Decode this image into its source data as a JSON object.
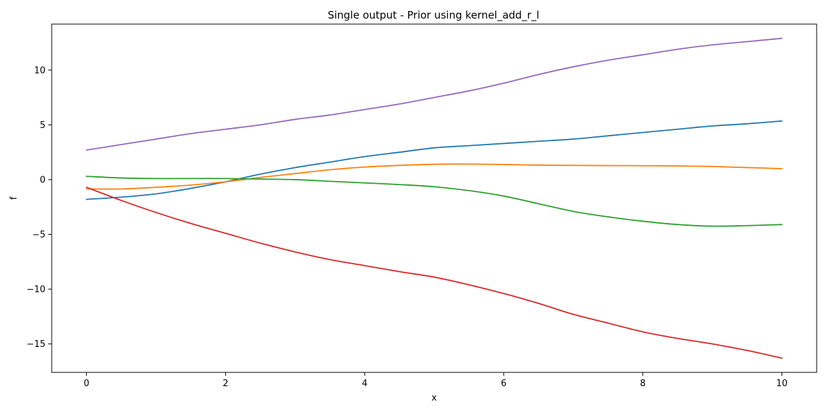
{
  "chart_data": {
    "type": "line",
    "title": "Single output - Prior using kernel_add_r_l",
    "xlabel": "x",
    "ylabel": "f",
    "xlim": [
      -0.5,
      10.5
    ],
    "ylim": [
      -17.6,
      14.2
    ],
    "xticks": [
      0,
      2,
      4,
      6,
      8,
      10
    ],
    "yticks": [
      10,
      5,
      0,
      -5,
      -10,
      -15
    ],
    "xtick_labels": [
      "0",
      "2",
      "4",
      "6",
      "8",
      "10"
    ],
    "ytick_labels": [
      "10",
      "5",
      "0",
      "−5",
      "−10",
      "−15"
    ],
    "grid": false,
    "x": [
      0,
      0.5,
      1,
      1.5,
      2,
      2.5,
      3,
      3.5,
      4,
      4.5,
      5,
      5.5,
      6,
      6.5,
      7,
      7.5,
      8,
      8.5,
      9,
      9.5,
      10
    ],
    "series": [
      {
        "color": "#1f77b4",
        "values": [
          -1.8,
          -1.6,
          -1.3,
          -0.8,
          -0.2,
          0.5,
          1.1,
          1.6,
          2.1,
          2.5,
          2.9,
          3.1,
          3.3,
          3.5,
          3.7,
          4.0,
          4.3,
          4.6,
          4.9,
          5.1,
          5.35
        ]
      },
      {
        "color": "#ff7f0e",
        "values": [
          -0.85,
          -0.85,
          -0.7,
          -0.5,
          -0.2,
          0.2,
          0.55,
          0.9,
          1.15,
          1.3,
          1.4,
          1.42,
          1.38,
          1.32,
          1.3,
          1.28,
          1.27,
          1.25,
          1.2,
          1.1,
          1.0
        ]
      },
      {
        "color": "#2ca02c",
        "values": [
          0.3,
          0.15,
          0.1,
          0.1,
          0.1,
          0.05,
          0.0,
          -0.15,
          -0.3,
          -0.45,
          -0.65,
          -1.0,
          -1.5,
          -2.2,
          -2.9,
          -3.4,
          -3.8,
          -4.1,
          -4.25,
          -4.2,
          -4.1
        ]
      },
      {
        "color": "#d62728",
        "values": [
          -0.7,
          -1.9,
          -3.0,
          -4.0,
          -4.9,
          -5.8,
          -6.6,
          -7.3,
          -7.85,
          -8.4,
          -8.9,
          -9.6,
          -10.4,
          -11.3,
          -12.3,
          -13.1,
          -13.9,
          -14.5,
          -15.0,
          -15.6,
          -16.3
        ]
      },
      {
        "color": "#9467bd",
        "values": [
          2.7,
          3.2,
          3.7,
          4.2,
          4.6,
          5.0,
          5.5,
          5.9,
          6.4,
          6.9,
          7.5,
          8.1,
          8.8,
          9.6,
          10.3,
          10.9,
          11.4,
          11.9,
          12.3,
          12.6,
          12.9
        ]
      }
    ]
  }
}
